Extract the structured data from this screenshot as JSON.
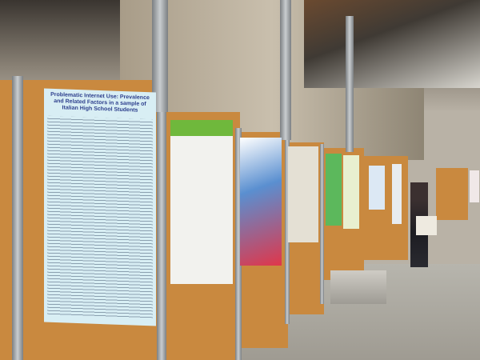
{
  "scene": "poster session hall",
  "posters": [
    {
      "title": "Problematic Internet Use: Prevalence and Related Factors in a sample of Italian High School Students"
    }
  ],
  "colors": {
    "board": "#c9893f",
    "poster_main": "#d8eef4",
    "floor": "#b7b5ad"
  }
}
